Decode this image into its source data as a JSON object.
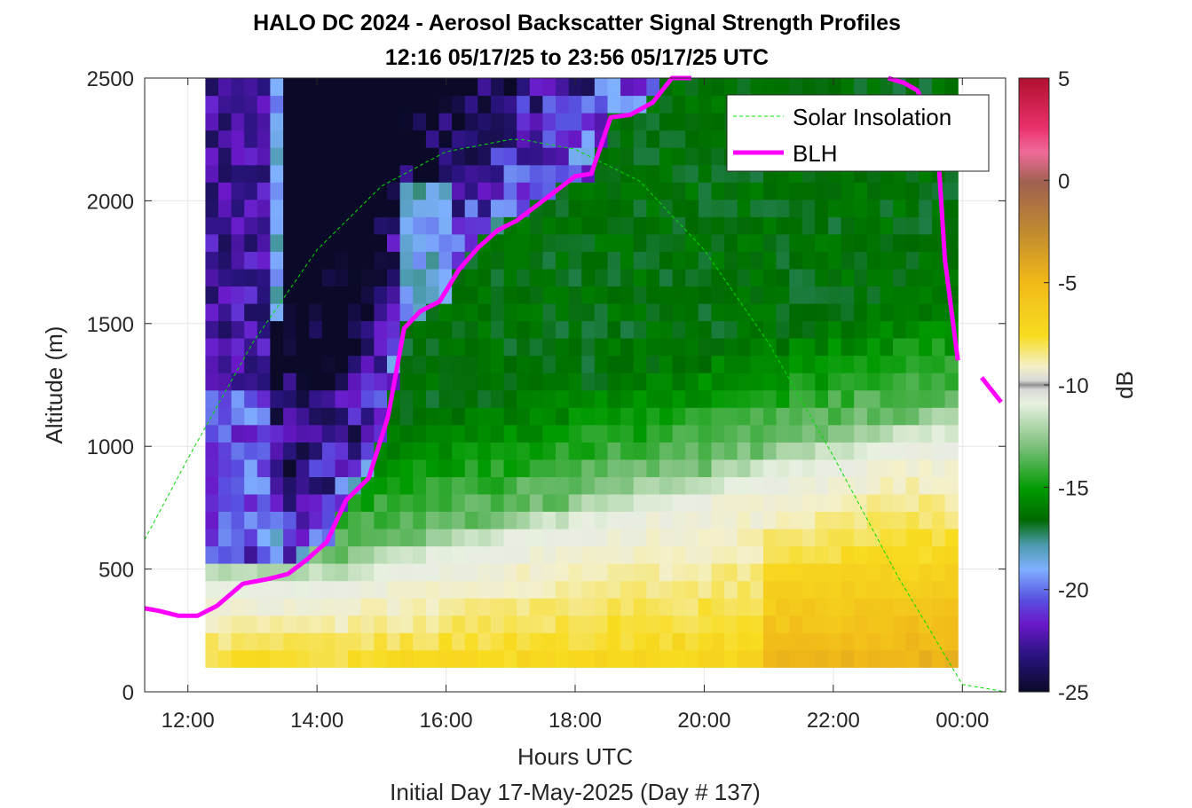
{
  "chart_data": {
    "type": "heatmap",
    "title": "HALO DC 2024 - Aerosol Backscatter Signal Strength Profiles",
    "subtitle": "12:16 05/17/25 to 23:56 05/17/25  UTC",
    "xlabel": "Hours UTC",
    "xlabel2": "Initial Day 17-May-2025 (Day # 137)",
    "ylabel": "Altitude (m)",
    "colorbar_label": "dB",
    "xlim": [
      11.33,
      24.67
    ],
    "ylim": [
      0,
      2500
    ],
    "clim": [
      -25,
      5
    ],
    "grid": true,
    "legend_placement": "top-right",
    "x_ticks": [
      {
        "value": 12,
        "label": "12:00"
      },
      {
        "value": 14,
        "label": "14:00"
      },
      {
        "value": 16,
        "label": "16:00"
      },
      {
        "value": 18,
        "label": "18:00"
      },
      {
        "value": 20,
        "label": "20:00"
      },
      {
        "value": 22,
        "label": "22:00"
      },
      {
        "value": 24,
        "label": "00:00"
      }
    ],
    "y_ticks": [
      {
        "value": 0,
        "label": "0"
      },
      {
        "value": 500,
        "label": "500"
      },
      {
        "value": 1000,
        "label": "1000"
      },
      {
        "value": 1500,
        "label": "1500"
      },
      {
        "value": 2000,
        "label": "2000"
      },
      {
        "value": 2500,
        "label": "2500"
      }
    ],
    "cbar_ticks": [
      {
        "value": 5,
        "label": "5"
      },
      {
        "value": 0,
        "label": "0"
      },
      {
        "value": -5,
        "label": "-5"
      },
      {
        "value": -10,
        "label": "-10"
      },
      {
        "value": -15,
        "label": "-15"
      },
      {
        "value": -20,
        "label": "-20"
      },
      {
        "value": -25,
        "label": "-25"
      }
    ],
    "heatmap": {
      "x_start": 12.27,
      "x_end": 23.93,
      "y_start": 100,
      "y_end": 2500,
      "description_bins": "time columns x altitude rows, backscatter signal in dB"
    },
    "series": [
      {
        "name": "Solar Insolation",
        "style": "dashed",
        "color": "#00dd00",
        "x": [
          11.33,
          12.0,
          13.0,
          14.0,
          15.0,
          16.0,
          17.0,
          17.17,
          18.0,
          19.0,
          20.0,
          21.0,
          22.0,
          23.0,
          24.0,
          24.67
        ],
        "y": [
          620,
          950,
          1420,
          1800,
          2060,
          2200,
          2250,
          2250,
          2210,
          2080,
          1800,
          1420,
          960,
          470,
          30,
          0
        ]
      },
      {
        "name": "BLH",
        "style": "solid",
        "color": "#ff00ff",
        "segments": [
          {
            "x": [
              11.33,
              11.55,
              11.85,
              12.15,
              12.45,
              12.85,
              13.25,
              13.55,
              13.85,
              14.15,
              14.45,
              14.8,
              15.1,
              15.35,
              15.6,
              15.9,
              16.2,
              16.5,
              16.8,
              17.1,
              17.4,
              17.7,
              18.0,
              18.25,
              18.55,
              18.85,
              19.2,
              19.5,
              19.8
            ],
            "y": [
              340,
              330,
              310,
              310,
              350,
              440,
              460,
              480,
              540,
              610,
              780,
              870,
              1120,
              1480,
              1550,
              1590,
              1720,
              1810,
              1880,
              1920,
              1980,
              2040,
              2100,
              2110,
              2340,
              2350,
              2400,
              2500,
              2500
            ]
          },
          {
            "x": [
              22.85,
              23.1,
              23.3,
              23.5,
              23.62,
              23.73,
              23.93
            ],
            "y": [
              2500,
              2480,
              2450,
              2350,
              2210,
              1760,
              1350
            ]
          },
          {
            "x": [
              24.3,
              24.6
            ],
            "y": [
              1280,
              1180
            ]
          }
        ]
      }
    ]
  }
}
